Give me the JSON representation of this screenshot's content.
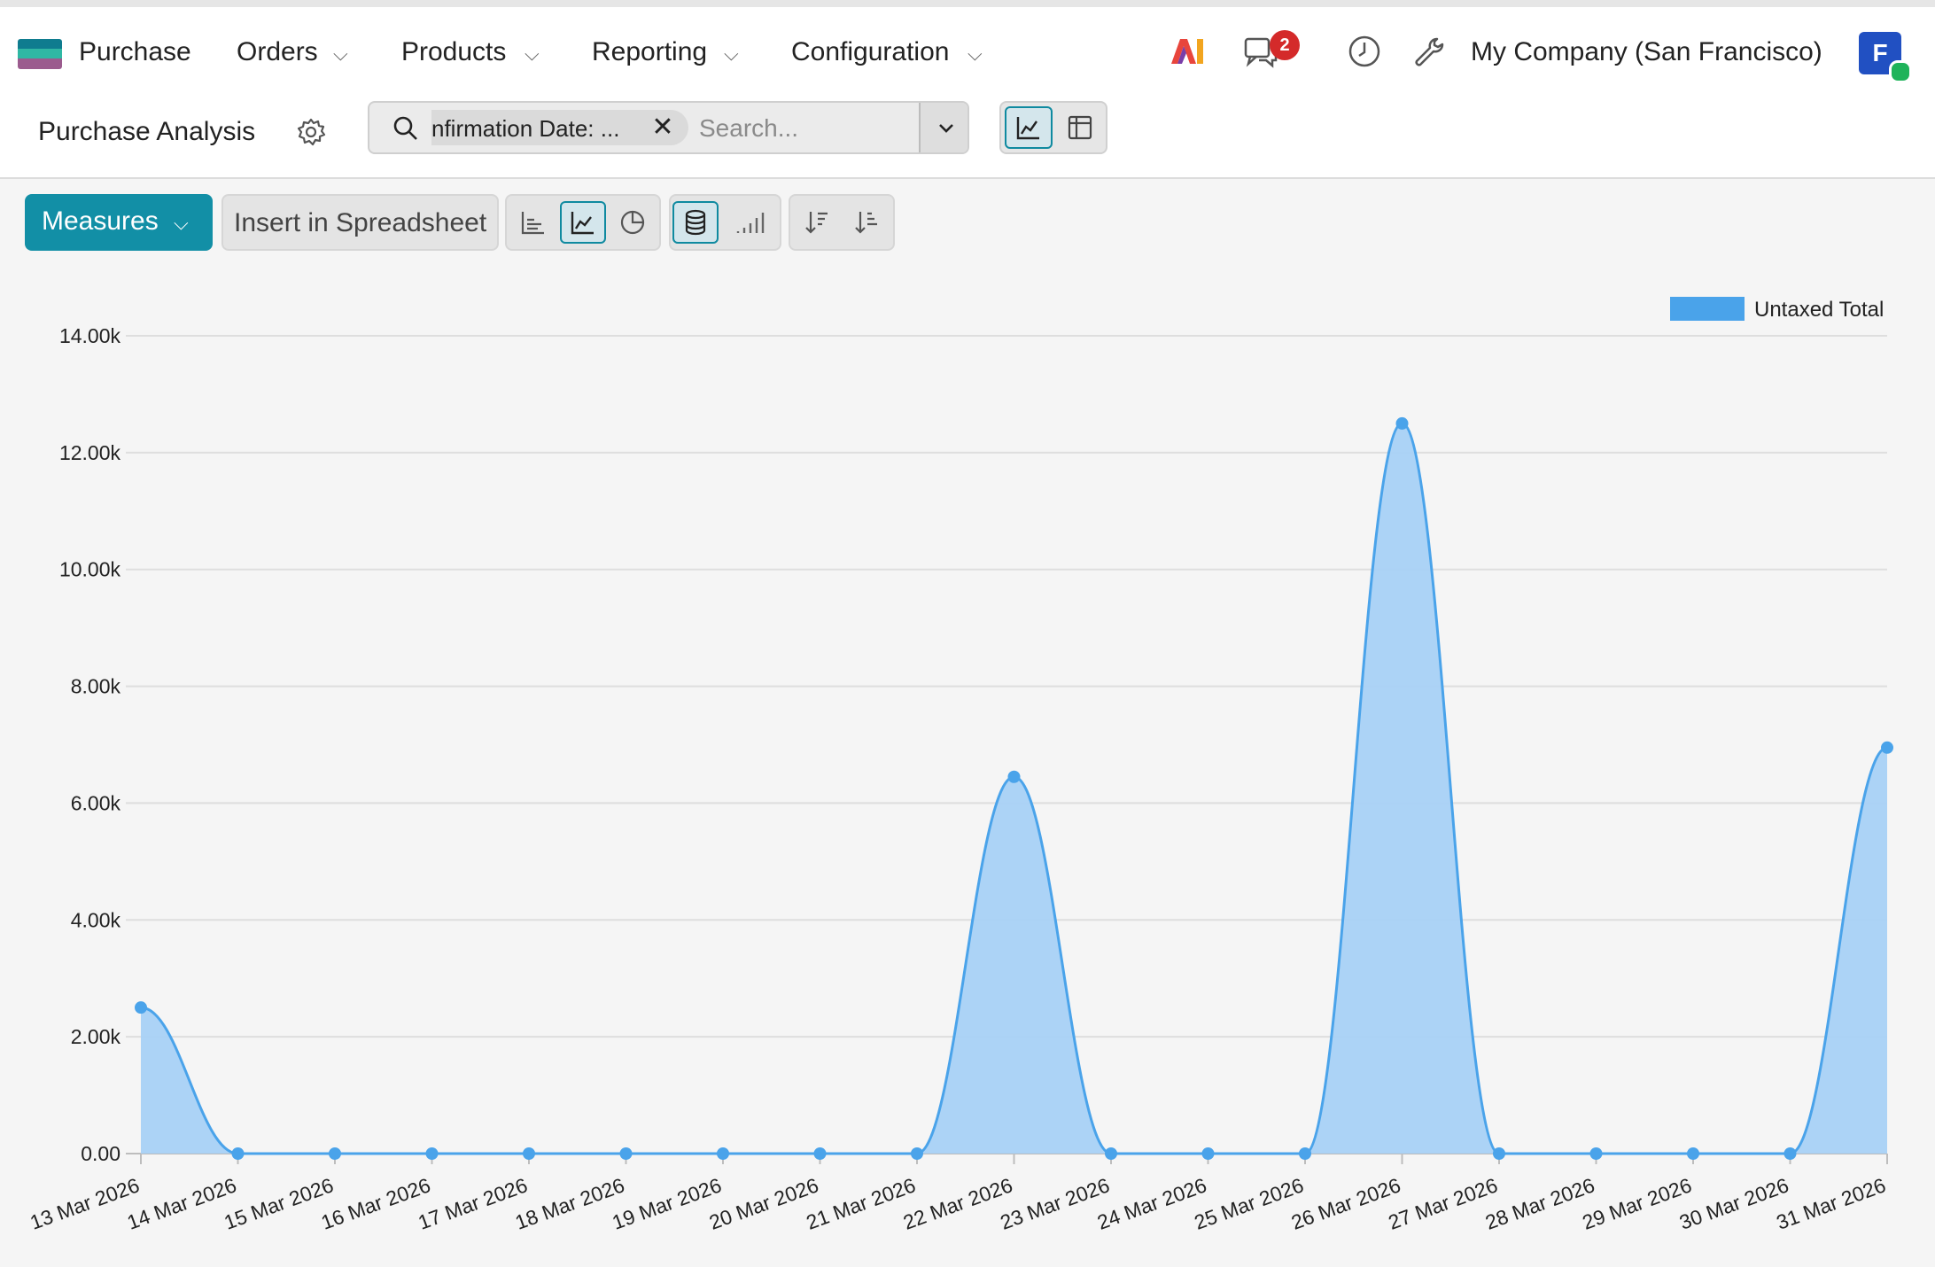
{
  "navbar": {
    "app_name": "Purchase",
    "menus": [
      "Orders",
      "Products",
      "Reporting",
      "Configuration"
    ],
    "ai_label": "AI",
    "messages_count": "2",
    "company": "My Company (San Francisco)",
    "avatar_initial": "F"
  },
  "controlbar": {
    "title": "Purchase Analysis",
    "facet_text": "nfirmation Date: ...",
    "search_placeholder": "Search..."
  },
  "toolbar": {
    "measures_label": "Measures",
    "insert_label": "Insert in Spreadsheet"
  },
  "colors": {
    "accent": "#128fa6",
    "series": "#4aa3ea",
    "series_fill": "#a8d1f5",
    "badge": "#d42a2a"
  },
  "chart_data": {
    "type": "area",
    "categories": [
      "13 Mar 2026",
      "14 Mar 2026",
      "15 Mar 2026",
      "16 Mar 2026",
      "17 Mar 2026",
      "18 Mar 2026",
      "19 Mar 2026",
      "20 Mar 2026",
      "21 Mar 2026",
      "22 Mar 2026",
      "23 Mar 2026",
      "24 Mar 2026",
      "25 Mar 2026",
      "26 Mar 2026",
      "27 Mar 2026",
      "28 Mar 2026",
      "29 Mar 2026",
      "30 Mar 2026",
      "31 Mar 2026"
    ],
    "series": [
      {
        "name": "Untaxed Total",
        "values": [
          2500,
          0,
          0,
          0,
          0,
          0,
          0,
          0,
          0,
          6450,
          0,
          0,
          0,
          12500,
          0,
          0,
          0,
          0,
          6950
        ]
      }
    ],
    "y_ticks": [
      "0.00",
      "2.00k",
      "4.00k",
      "6.00k",
      "8.00k",
      "10.00k",
      "12.00k",
      "14.00k"
    ],
    "ylim": [
      0,
      14000
    ],
    "grid": true,
    "legend_position": "top-right"
  }
}
